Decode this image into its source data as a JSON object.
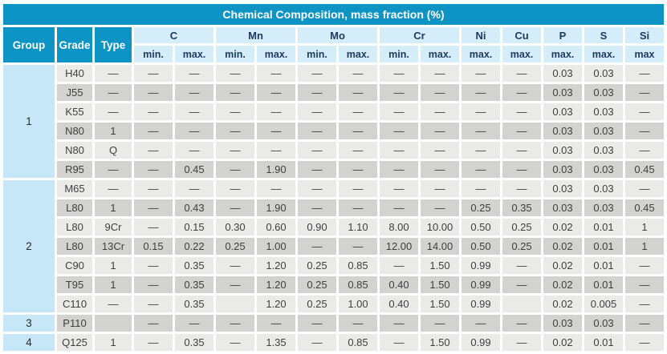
{
  "chart_data": {
    "type": "table",
    "title": "Chemical Composition, mass fraction (%)",
    "header": {
      "group": "Group",
      "grade": "Grade",
      "type": "Type",
      "element_groups": [
        {
          "label": "C",
          "subs": [
            "min.",
            "max."
          ]
        },
        {
          "label": "Mn",
          "subs": [
            "min.",
            "max."
          ]
        },
        {
          "label": "Mo",
          "subs": [
            "min.",
            "max."
          ]
        },
        {
          "label": "Cr",
          "subs": [
            "min.",
            "max."
          ]
        },
        {
          "label": "Ni",
          "subs": [
            "max."
          ]
        },
        {
          "label": "Cu",
          "subs": [
            "max."
          ]
        },
        {
          "label": "P",
          "subs": [
            "max."
          ]
        },
        {
          "label": "S",
          "subs": [
            "max."
          ]
        },
        {
          "label": "Si",
          "subs": [
            "max"
          ]
        }
      ]
    },
    "value_columns": [
      "C min",
      "C max",
      "Mn min",
      "Mn max",
      "Mo min",
      "Mo max",
      "Cr min",
      "Cr max",
      "Ni max",
      "Cu max",
      "P max",
      "S max",
      "Si max"
    ],
    "groups": [
      {
        "group": "1",
        "rows": [
          {
            "grade": "H40",
            "type": "—",
            "values": [
              "—",
              "—",
              "—",
              "—",
              "—",
              "—",
              "—",
              "—",
              "—",
              "—",
              "0.03",
              "0.03",
              "—"
            ]
          },
          {
            "grade": "J55",
            "type": "—",
            "values": [
              "—",
              "—",
              "—",
              "—",
              "—",
              "—",
              "—",
              "—",
              "—",
              "—",
              "0.03",
              "0.03",
              "—"
            ]
          },
          {
            "grade": "K55",
            "type": "—",
            "values": [
              "—",
              "—",
              "—",
              "—",
              "—",
              "—",
              "—",
              "—",
              "—",
              "—",
              "0.03",
              "0.03",
              "—"
            ]
          },
          {
            "grade": "N80",
            "type": "1",
            "values": [
              "—",
              "—",
              "—",
              "—",
              "—",
              "—",
              "—",
              "—",
              "—",
              "—",
              "0.03",
              "0.03",
              "—"
            ]
          },
          {
            "grade": "N80",
            "type": "Q",
            "values": [
              "—",
              "—",
              "—",
              "—",
              "—",
              "—",
              "—",
              "—",
              "—",
              "—",
              "0.03",
              "0.03",
              "—"
            ]
          },
          {
            "grade": "R95",
            "type": "—",
            "values": [
              "—",
              "0.45",
              "—",
              "1.90",
              "—",
              "—",
              "—",
              "—",
              "—",
              "—",
              "0.03",
              "0.03",
              "0.45"
            ]
          }
        ]
      },
      {
        "group": "2",
        "rows": [
          {
            "grade": "M65",
            "type": "—",
            "values": [
              "—",
              "—",
              "—",
              "—",
              "—",
              "—",
              "—",
              "—",
              "—",
              "—",
              "0.03",
              "0.03",
              "—"
            ]
          },
          {
            "grade": "L80",
            "type": "1",
            "values": [
              "—",
              "0.43",
              "—",
              "1.90",
              "—",
              "—",
              "—",
              "—",
              "0.25",
              "0.35",
              "0.03",
              "0.03",
              "0.45"
            ]
          },
          {
            "grade": "L80",
            "type": "9Cr",
            "values": [
              "—",
              "0.15",
              "0.30",
              "0.60",
              "0.90",
              "1.10",
              "8.00",
              "10.00",
              "0.50",
              "0.25",
              "0.02",
              "0.01",
              "1"
            ]
          },
          {
            "grade": "L80",
            "type": "13Cr",
            "values": [
              "0.15",
              "0.22",
              "0.25",
              "1.00",
              "—",
              "—",
              "12.00",
              "14.00",
              "0.50",
              "0.25",
              "0.02",
              "0.01",
              "1"
            ]
          },
          {
            "grade": "C90",
            "type": "1",
            "values": [
              "—",
              "0.35",
              "—",
              "1.20",
              "0.25",
              "0.85",
              "—",
              "1.50",
              "0.99",
              "—",
              "0.02",
              "0.01",
              "—"
            ]
          },
          {
            "grade": "T95",
            "type": "1",
            "values": [
              "—",
              "0.35",
              "—",
              "1.20",
              "0.25",
              "0.85",
              "0.40",
              "1.50",
              "0.99",
              "—",
              "0.02",
              "0.01",
              "—"
            ]
          },
          {
            "grade": "C110",
            "type": "—",
            "values": [
              "—",
              "0.35",
              "",
              "1.20",
              "0.25",
              "1.00",
              "0.40",
              "1.50",
              "0.99",
              "",
              "0.02",
              "0.005",
              "—"
            ]
          }
        ]
      },
      {
        "group": "3",
        "rows": [
          {
            "grade": "P110",
            "type": "",
            "values": [
              "—",
              "—",
              "—",
              "—",
              "—",
              "—",
              "—",
              "—",
              "—",
              "—",
              "0.03",
              "0.03",
              "—"
            ]
          }
        ]
      },
      {
        "group": "4",
        "rows": [
          {
            "grade": "Q125",
            "type": "1",
            "values": [
              "—",
              "0.35",
              "—",
              "1.35",
              "—",
              "0.85",
              "—",
              "1.50",
              "0.99",
              "—",
              "0.02",
              "0.01",
              "—"
            ]
          }
        ]
      }
    ],
    "colors": {
      "title_background": "#0d94c4",
      "header_background": "#d5ecf9",
      "group_column_background": "#c7e6f7",
      "row_light": "#eaeae8",
      "row_dark": "#d2d2d0",
      "header_text": "#1e3c60",
      "data_text": "#3f3f3f"
    }
  }
}
